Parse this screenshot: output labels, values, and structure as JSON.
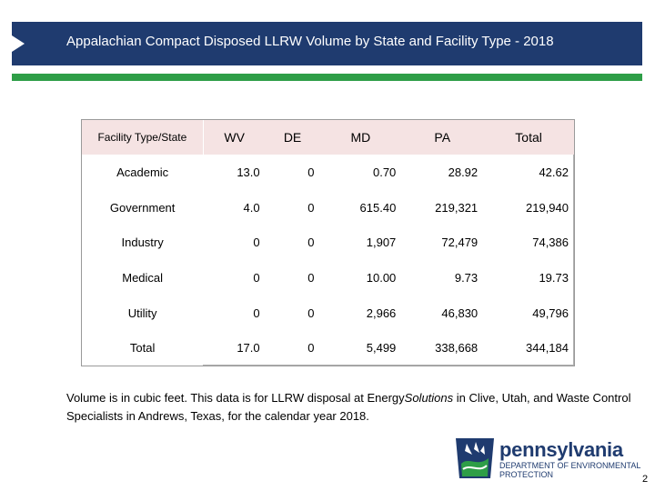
{
  "header": {
    "title": "Appalachian Compact Disposed LLRW Volume by State and Facility Type - 2018"
  },
  "table": {
    "columns": [
      "Facility Type/State",
      "WV",
      "DE",
      "MD",
      "PA",
      "Total"
    ],
    "rows": [
      {
        "label": "Academic",
        "wv": "13.0",
        "de": "0",
        "md": "0.70",
        "pa": "28.92",
        "total": "42.62"
      },
      {
        "label": "Government",
        "wv": "4.0",
        "de": "0",
        "md": "615.40",
        "pa": "219,321",
        "total": "219,940"
      },
      {
        "label": "Industry",
        "wv": "0",
        "de": "0",
        "md": "1,907",
        "pa": "72,479",
        "total": "74,386"
      },
      {
        "label": "Medical",
        "wv": "0",
        "de": "0",
        "md": "10.00",
        "pa": "9.73",
        "total": "19.73"
      },
      {
        "label": "Utility",
        "wv": "0",
        "de": "0",
        "md": "2,966",
        "pa": "46,830",
        "total": "49,796"
      },
      {
        "label": "Total",
        "wv": "17.0",
        "de": "0",
        "md": "5,499",
        "pa": "338,668",
        "total": "344,184"
      }
    ]
  },
  "note": {
    "part1": "Volume is in cubic feet.  This data is for LLRW disposal at Energy",
    "italic": "Solutions",
    "part2": " in Clive, Utah, and Waste Control Specialists in Andrews, Texas, for the calendar year 2018."
  },
  "logo": {
    "name": "pennsylvania",
    "dept_line1": "DEPARTMENT OF ENVIRONMENTAL",
    "dept_line2": "PROTECTION"
  },
  "page_number": "2",
  "colors": {
    "title_bar": "#1f3b6f",
    "green_rule": "#2e9e47",
    "header_cell": "#f5e3e3"
  }
}
